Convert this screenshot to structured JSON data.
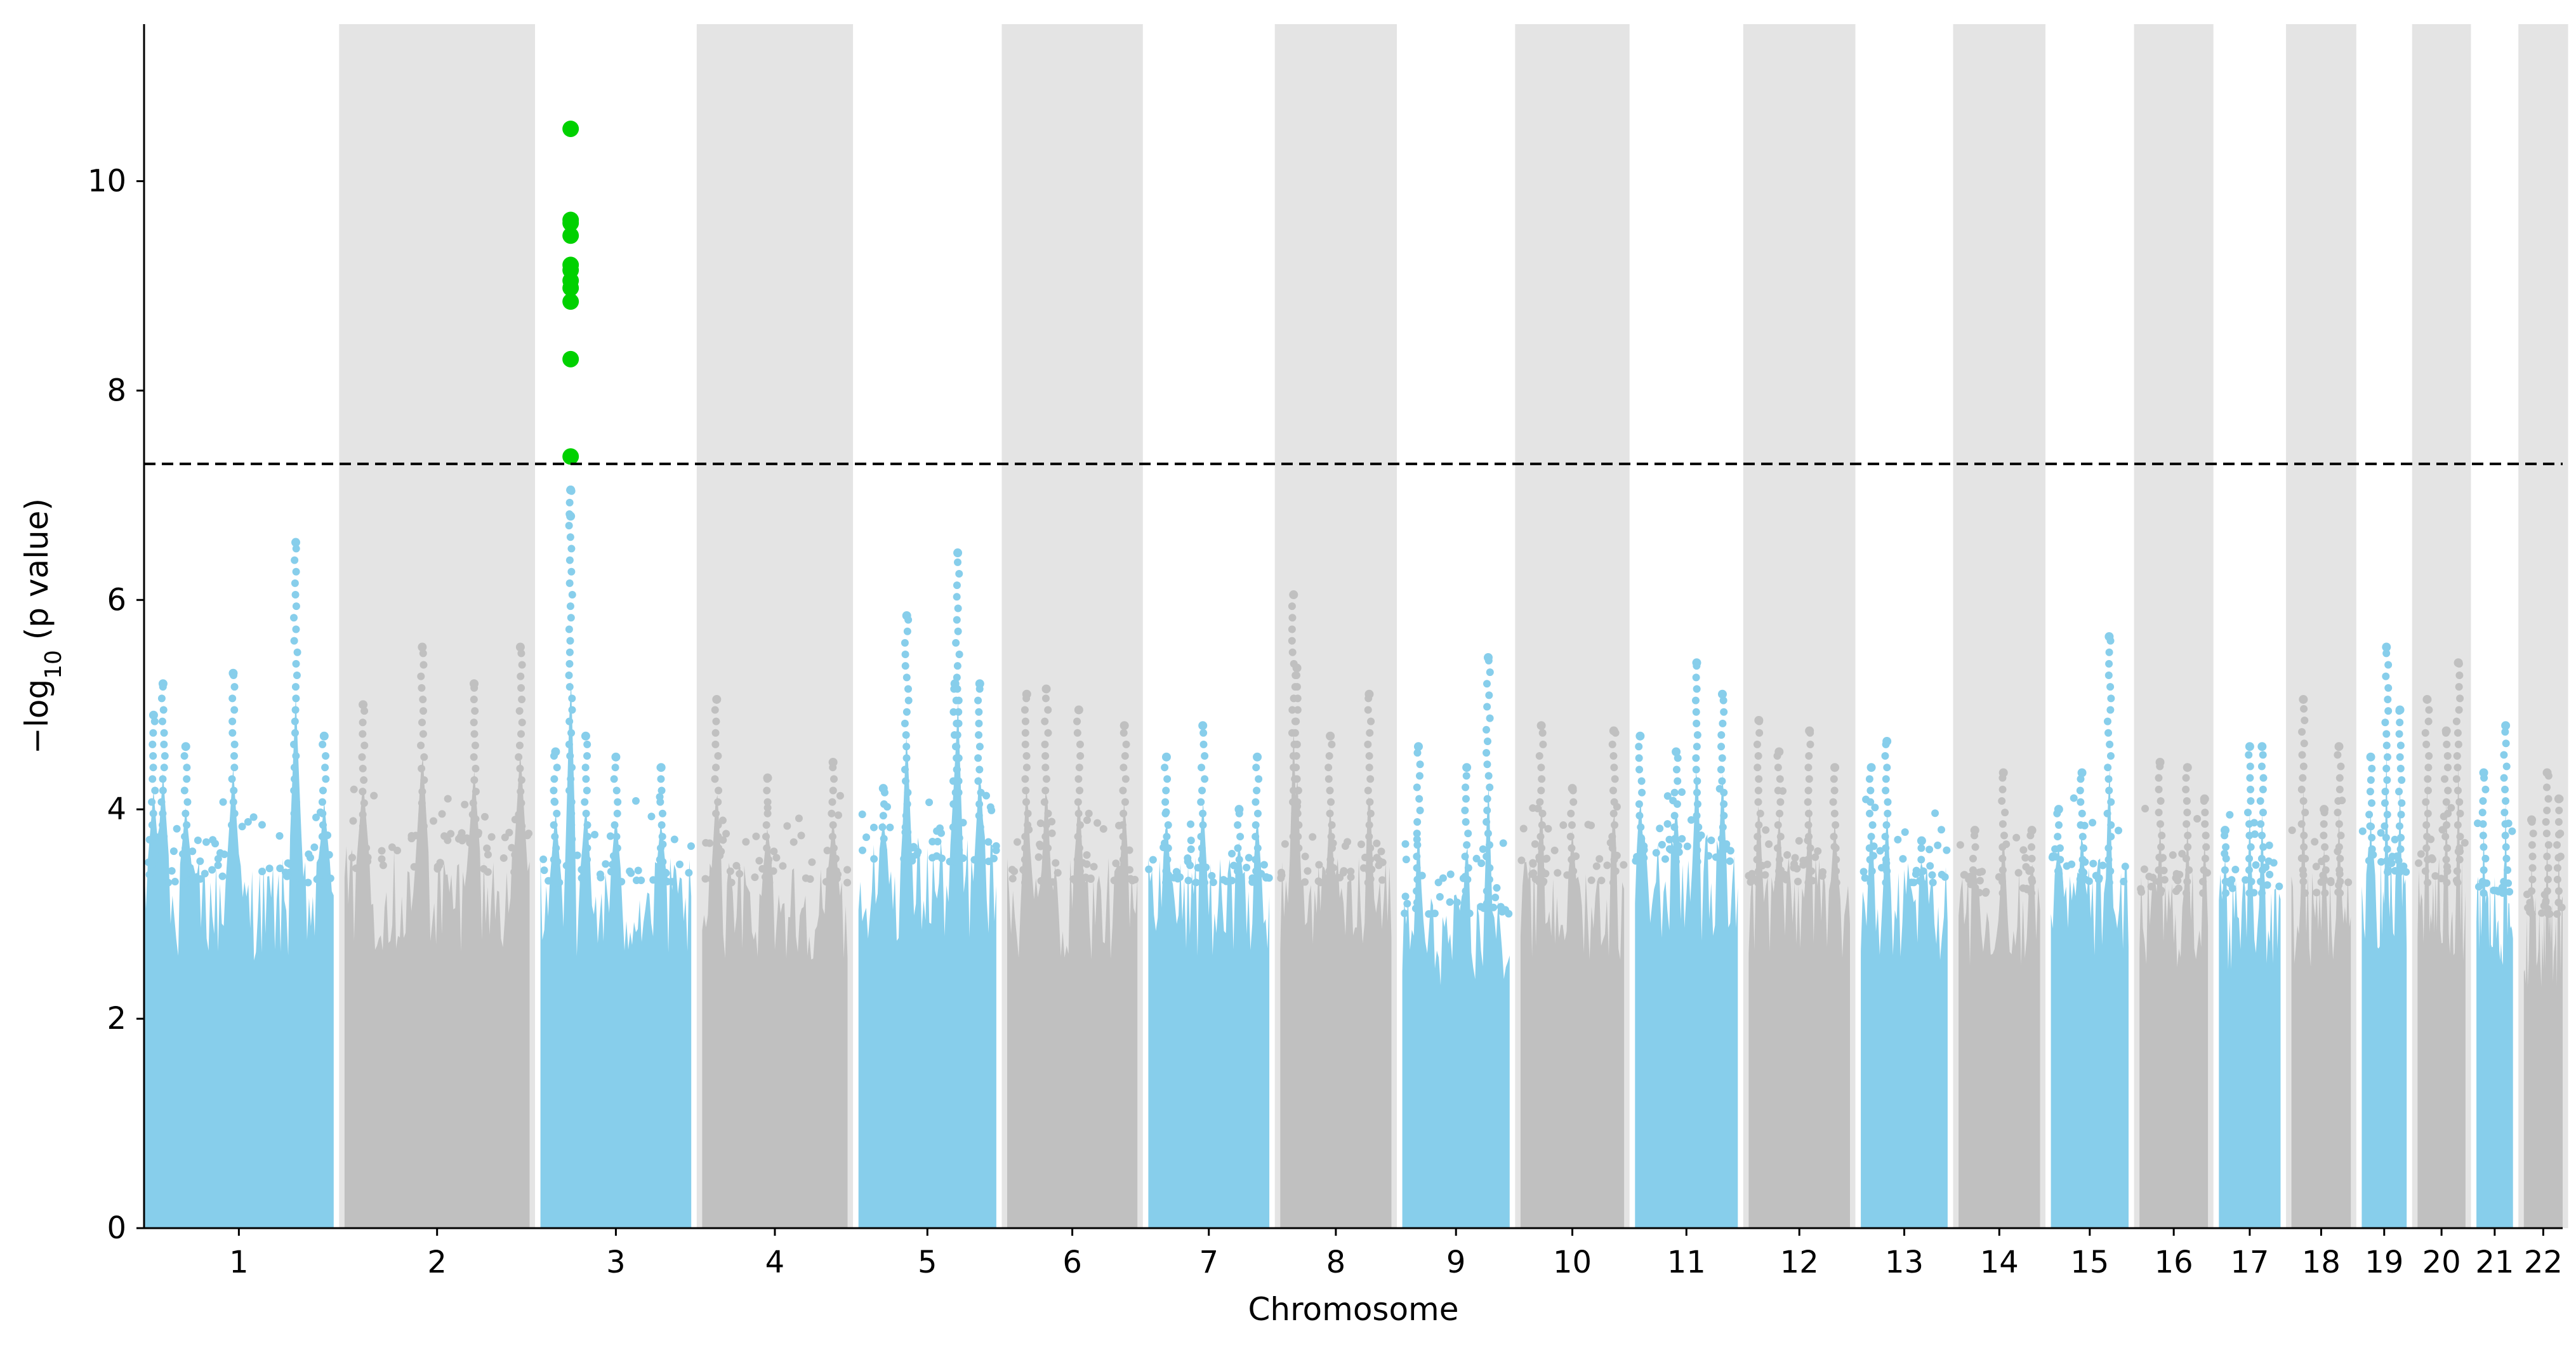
{
  "chart_data": {
    "type": "scatter",
    "subtype": "manhattan",
    "title": "",
    "xlabel": "Chromosome",
    "ylabel_main": "−log",
    "ylabel_sub": "10",
    "ylabel_rest": " (p value)",
    "ylim": [
      0,
      11.5
    ],
    "yticks": [
      0,
      2,
      4,
      6,
      8,
      10
    ],
    "significance_threshold": 7.3,
    "colors": {
      "odd": "#87CEEB",
      "even": "#C0C0C0",
      "shade": "#E4E4E4",
      "hit": "#00D100",
      "threshold": "#000000"
    },
    "chromosomes": [
      {
        "label": "1",
        "length": 249,
        "base": 3.3,
        "peaks": [
          [
            0.05,
            4.9
          ],
          [
            0.1,
            5.2
          ],
          [
            0.22,
            4.6
          ],
          [
            0.47,
            5.3
          ],
          [
            0.8,
            6.55
          ],
          [
            0.95,
            4.7
          ]
        ]
      },
      {
        "label": "2",
        "length": 243,
        "base": 3.4,
        "peaks": [
          [
            0.1,
            5.0
          ],
          [
            0.42,
            5.55
          ],
          [
            0.7,
            5.2
          ],
          [
            0.95,
            5.55
          ]
        ]
      },
      {
        "label": "3",
        "length": 198,
        "base": 3.3,
        "peaks": [
          [
            0.1,
            4.55
          ],
          [
            0.2,
            7.05
          ],
          [
            0.3,
            4.7
          ],
          [
            0.5,
            4.5
          ],
          [
            0.8,
            4.4
          ]
        ]
      },
      {
        "label": "4",
        "length": 191,
        "base": 3.3,
        "peaks": [
          [
            0.1,
            5.05
          ],
          [
            0.45,
            4.3
          ],
          [
            0.9,
            4.45
          ]
        ]
      },
      {
        "label": "5",
        "length": 181,
        "base": 3.5,
        "peaks": [
          [
            0.18,
            4.2
          ],
          [
            0.35,
            5.85
          ],
          [
            0.7,
            5.2
          ],
          [
            0.72,
            6.45
          ],
          [
            0.88,
            5.2
          ]
        ]
      },
      {
        "label": "6",
        "length": 171,
        "base": 3.3,
        "peaks": [
          [
            0.15,
            5.1
          ],
          [
            0.3,
            5.15
          ],
          [
            0.55,
            4.95
          ],
          [
            0.9,
            4.8
          ]
        ]
      },
      {
        "label": "7",
        "length": 159,
        "base": 3.3,
        "peaks": [
          [
            0.15,
            4.5
          ],
          [
            0.45,
            4.8
          ],
          [
            0.75,
            4.0
          ],
          [
            0.9,
            4.5
          ]
        ]
      },
      {
        "label": "8",
        "length": 146,
        "base": 3.3,
        "peaks": [
          [
            0.12,
            6.05
          ],
          [
            0.15,
            5.35
          ],
          [
            0.45,
            4.7
          ],
          [
            0.8,
            5.1
          ]
        ]
      },
      {
        "label": "9",
        "length": 141,
        "base": 3.0,
        "peaks": [
          [
            0.15,
            4.6
          ],
          [
            0.6,
            4.4
          ],
          [
            0.8,
            5.45
          ]
        ]
      },
      {
        "label": "10",
        "length": 136,
        "base": 3.3,
        "peaks": [
          [
            0.2,
            4.8
          ],
          [
            0.5,
            4.2
          ],
          [
            0.9,
            4.75
          ]
        ]
      },
      {
        "label": "11",
        "length": 135,
        "base": 3.5,
        "peaks": [
          [
            0.05,
            4.7
          ],
          [
            0.4,
            4.55
          ],
          [
            0.6,
            5.4
          ],
          [
            0.85,
            5.1
          ]
        ]
      },
      {
        "label": "12",
        "length": 133,
        "base": 3.3,
        "peaks": [
          [
            0.1,
            4.85
          ],
          [
            0.3,
            4.55
          ],
          [
            0.6,
            4.75
          ],
          [
            0.85,
            4.4
          ]
        ]
      },
      {
        "label": "13",
        "length": 114,
        "base": 3.3,
        "peaks": [
          [
            0.12,
            4.4
          ],
          [
            0.3,
            4.65
          ],
          [
            0.7,
            3.7
          ]
        ]
      },
      {
        "label": "14",
        "length": 107,
        "base": 3.2,
        "peaks": [
          [
            0.2,
            3.8
          ],
          [
            0.55,
            4.35
          ],
          [
            0.9,
            3.8
          ]
        ]
      },
      {
        "label": "15",
        "length": 102,
        "base": 3.3,
        "peaks": [
          [
            0.1,
            4.0
          ],
          [
            0.4,
            4.35
          ],
          [
            0.75,
            5.65
          ]
        ]
      },
      {
        "label": "16",
        "length": 90,
        "base": 3.2,
        "peaks": [
          [
            0.3,
            4.45
          ],
          [
            0.7,
            4.4
          ],
          [
            0.95,
            4.1
          ]
        ]
      },
      {
        "label": "17",
        "length": 81,
        "base": 3.2,
        "peaks": [
          [
            0.1,
            3.8
          ],
          [
            0.5,
            4.6
          ],
          [
            0.7,
            4.6
          ]
        ]
      },
      {
        "label": "18",
        "length": 78,
        "base": 3.2,
        "peaks": [
          [
            0.2,
            5.05
          ],
          [
            0.55,
            4.0
          ],
          [
            0.8,
            4.6
          ]
        ]
      },
      {
        "label": "19",
        "length": 59,
        "base": 3.4,
        "peaks": [
          [
            0.2,
            4.5
          ],
          [
            0.55,
            5.55
          ],
          [
            0.85,
            4.95
          ]
        ]
      },
      {
        "label": "20",
        "length": 63,
        "base": 3.3,
        "peaks": [
          [
            0.2,
            5.05
          ],
          [
            0.6,
            4.75
          ],
          [
            0.85,
            5.4
          ]
        ]
      },
      {
        "label": "21",
        "length": 48,
        "base": 3.2,
        "peaks": [
          [
            0.2,
            4.35
          ],
          [
            0.8,
            4.8
          ]
        ]
      },
      {
        "label": "22",
        "length": 51,
        "base": 3.0,
        "peaks": [
          [
            0.2,
            3.9
          ],
          [
            0.6,
            4.35
          ],
          [
            0.9,
            4.1
          ]
        ]
      }
    ],
    "significant_points": [
      {
        "chromosome": "3",
        "position": 0.2,
        "y": 10.5
      },
      {
        "chromosome": "3",
        "position": 0.2,
        "y": 9.63
      },
      {
        "chromosome": "3",
        "position": 0.2,
        "y": 9.6
      },
      {
        "chromosome": "3",
        "position": 0.2,
        "y": 9.48
      },
      {
        "chromosome": "3",
        "position": 0.2,
        "y": 9.2
      },
      {
        "chromosome": "3",
        "position": 0.2,
        "y": 9.15
      },
      {
        "chromosome": "3",
        "position": 0.2,
        "y": 9.05
      },
      {
        "chromosome": "3",
        "position": 0.2,
        "y": 8.98
      },
      {
        "chromosome": "3",
        "position": 0.2,
        "y": 8.85
      },
      {
        "chromosome": "3",
        "position": 0.2,
        "y": 8.3
      },
      {
        "chromosome": "3",
        "position": 0.2,
        "y": 7.37
      }
    ],
    "near_threshold_points": [
      {
        "chromosome": "3",
        "position": 0.2,
        "y": 7.05
      },
      {
        "chromosome": "3",
        "position": 0.2,
        "y": 6.8
      }
    ]
  }
}
